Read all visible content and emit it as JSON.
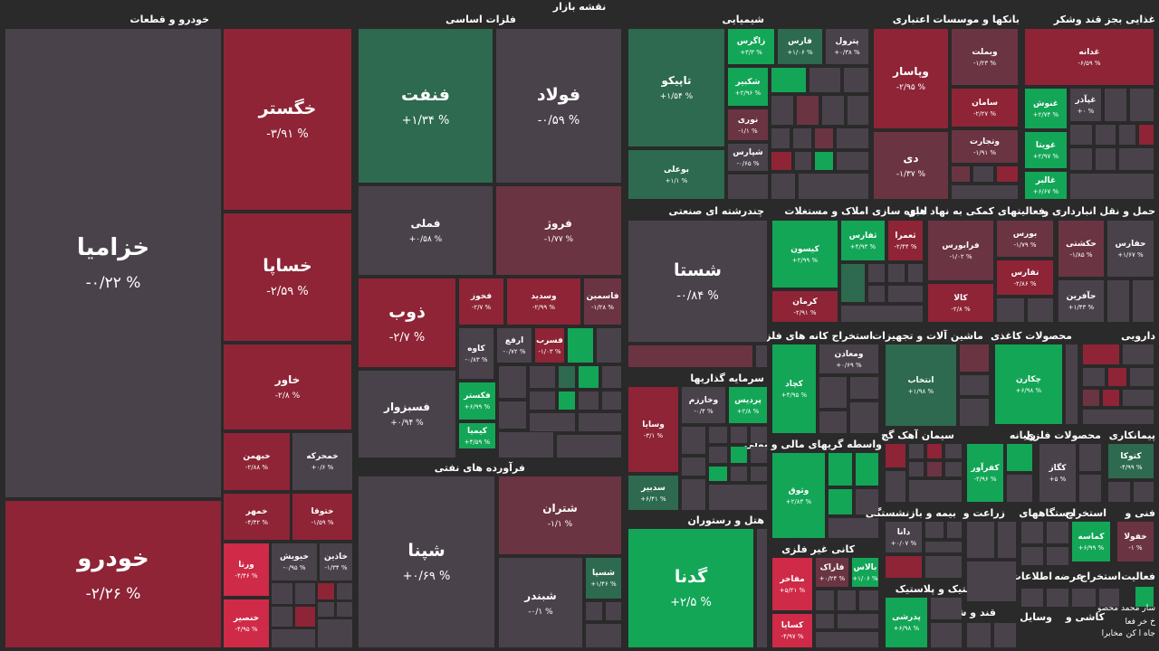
{
  "title": "نقشه بازار",
  "sections": [
    "خودرو و قطعات",
    "فلزات اساسی",
    "شیمیایی",
    "بانکها و موسسات اعتباری",
    "غذایی بجز قند وشکر",
    "چندرشته ای صنعتی",
    "فعالیتهای کمکی به نهاد های",
    "انبوه سازی املاک و مستغلات",
    "حمل و نقل انبارداری و",
    "فرآورده های نفتی",
    "سرمایه گذاریها",
    "هتل و رستوران",
    "استخراج کانه های فلزی",
    "ماشین آلات و تجهیزات",
    "محصولات کاغذی",
    "دارویی",
    "واسطه گریهای مالی و پولی",
    "سیمان آهک گچ",
    "رایانه",
    "محصولات فلزی",
    "پیمانکاری",
    "کانی غیر فلزی",
    "بیمه و بازنشستگی",
    "زراعت و",
    "دستگاههای",
    "استخراج",
    "فنی و",
    "قند و شکر",
    "عرضه",
    "اطلاعات",
    "لاستیک و پلاستیک",
    "فعالیت",
    "استخراج",
    "کاشی و",
    "وسایل"
  ],
  "tiles": [
    {
      "n": "خزامیا",
      "p": "-۰/۲۲ %"
    },
    {
      "n": "خودرو",
      "p": "-۲/۲۶ %"
    },
    {
      "n": "خگستر",
      "p": "-۳/۹۱ %"
    },
    {
      "n": "خساپا",
      "p": "-۲/۵۹ %"
    },
    {
      "n": "خاور",
      "p": "-۲/۸ %"
    },
    {
      "n": "خبهمن",
      "p": "-۲/۸۸ %"
    },
    {
      "n": "خمحرکه",
      "p": "+۰/۶ %"
    },
    {
      "n": "خمهر",
      "p": "-۴/۴۲ %"
    },
    {
      "n": "ختوقا",
      "p": "-۱/۵۹ %"
    },
    {
      "n": "ورنا",
      "p": "-۴/۴۶ %"
    },
    {
      "n": "خیویش",
      "p": "-۰/۹۵ %"
    },
    {
      "n": "خاذین",
      "p": "-۱/۳۴ %"
    },
    {
      "n": "خنصیر",
      "p": "-۴/۹۵ %"
    },
    {
      "n": "فنفت",
      "p": "+۱/۳۴ %"
    },
    {
      "n": "فولاد",
      "p": "-۰/۵۹ %"
    },
    {
      "n": "فملی",
      "p": "+۰/۵۸ %"
    },
    {
      "n": "فروژ",
      "p": "-۱/۷۷ %"
    },
    {
      "n": "ذوب",
      "p": "-۲/۷ %"
    },
    {
      "n": "فخوز",
      "p": "-۲/۷ %"
    },
    {
      "n": "وسدید",
      "p": "-۲/۹۹ %"
    },
    {
      "n": "فاسمین",
      "p": "-۱/۲۸ %"
    },
    {
      "n": "کاوه",
      "p": "-۰/۸۳ %"
    },
    {
      "n": "ارفع",
      "p": "-۰/۷۲ %"
    },
    {
      "n": "فسرب",
      "p": "-۱/۰۳ %"
    },
    {
      "n": "فسبزوار",
      "p": "+۰/۹۴ %"
    },
    {
      "n": "فکستر",
      "p": "+۶/۹۹ %"
    },
    {
      "n": "کیمیا",
      "p": "+۴/۵۹ %"
    },
    {
      "n": "شپنا",
      "p": "+۰/۶۹ %"
    },
    {
      "n": "شتران",
      "p": "-۱/۱ %"
    },
    {
      "n": "شبندر",
      "p": "-۰/۱ %"
    },
    {
      "n": "شسپا",
      "p": "+۱/۴۶ %"
    },
    {
      "n": "تاپیکو",
      "p": "+۱/۵۴ %"
    },
    {
      "n": "بوعلی",
      "p": "+۱/۱ %"
    },
    {
      "n": "زاگرس",
      "p": "+۳/۳ %"
    },
    {
      "n": "فارس",
      "p": "+۱/۰۶ %"
    },
    {
      "n": "پترول",
      "p": "+۰/۳۸ %"
    },
    {
      "n": "شکبیر",
      "p": "+۲/۹۶ %"
    },
    {
      "n": "نوری",
      "p": "-۱/۱ %"
    },
    {
      "n": "شپارس",
      "p": "-۰/۶۵ %"
    },
    {
      "n": "وپاسار",
      "p": "-۲/۹۵ %"
    },
    {
      "n": "وبملت",
      "p": "-۱/۲۳ %"
    },
    {
      "n": "سامان",
      "p": "-۲/۲۷ %"
    },
    {
      "n": "وتجارت",
      "p": "-۱/۹۱ %"
    },
    {
      "n": "دی",
      "p": "-۱/۳۷ %"
    },
    {
      "n": "غدانه",
      "p": "-۶/۵۹ %"
    },
    {
      "n": "غنوش",
      "p": "+۲/۷۴ %"
    },
    {
      "n": "غپآذر",
      "p": "+۰ %"
    },
    {
      "n": "غویتا",
      "p": "+۲/۹۷ %"
    },
    {
      "n": "غالبر",
      "p": "+۶/۶۷ %"
    },
    {
      "n": "شستا",
      "p": "-۰/۸۴ %"
    },
    {
      "n": "وسایا",
      "p": "-۳/۱ %"
    },
    {
      "n": "وخارزم",
      "p": "-۰/۴ %"
    },
    {
      "n": "پردیس",
      "p": "+۲/۸ %"
    },
    {
      "n": "سدبیر",
      "p": "+۶/۴۱ %"
    },
    {
      "n": "گدنا",
      "p": "+۲/۵ %"
    },
    {
      "n": "کیسون",
      "p": "+۲/۹۹ %"
    },
    {
      "n": "کرمان",
      "p": "-۲/۹۱ %"
    },
    {
      "n": "ثفارس",
      "p": "+۴/۹۳ %"
    },
    {
      "n": "ثعمرا",
      "p": "-۲/۴۴ %"
    },
    {
      "n": "فرابورس",
      "p": "-۱/۰۲ %"
    },
    {
      "n": "بورس",
      "p": "-۱/۷۹ %"
    },
    {
      "n": "تفارس",
      "p": "-۲/۸۶ %"
    },
    {
      "n": "کالا",
      "p": "-۲/۸ %"
    },
    {
      "n": "حکشتی",
      "p": "-۱/۸۵ %"
    },
    {
      "n": "حفارس",
      "p": "+۱/۶۷ %"
    },
    {
      "n": "حآفرین",
      "p": "+۱/۴۳ %"
    },
    {
      "n": "کچاد",
      "p": "+۴/۹۵ %"
    },
    {
      "n": "ومعادن",
      "p": "+۰/۶۹ %"
    },
    {
      "n": "انتخاب",
      "p": "+۱/۹۸ %"
    },
    {
      "n": "چکارن",
      "p": "+۶/۹۸ %"
    },
    {
      "n": "وثوق",
      "p": "+۲/۸۳ %"
    },
    {
      "n": "مفاخر",
      "p": "+۵/۲۱ %"
    },
    {
      "n": "فاراک",
      "p": "+۰/۲۴ %"
    },
    {
      "n": "بالاس",
      "p": "+۱/۰۶ %"
    },
    {
      "n": "کسایا",
      "p": "-۴/۹۷ %"
    },
    {
      "n": "کفرآور",
      "p": "-۲/۹۶ %"
    },
    {
      "n": "کگاز",
      "p": "+۵ %"
    },
    {
      "n": "کتوکا",
      "p": "-۴/۹۹ %"
    },
    {
      "n": "دانا",
      "p": "+۰/۰۷ %"
    },
    {
      "n": "کماسه",
      "p": "+۶/۹۹ %"
    },
    {
      "n": "خفولا",
      "p": "-۱ %"
    },
    {
      "n": "پدرشی",
      "p": "+۶/۹۸ %"
    }
  ],
  "extra_text": [
    "سار محمد محصو",
    "خ خر فعا",
    "جاه ا کن",
    "مخابرا"
  ]
}
